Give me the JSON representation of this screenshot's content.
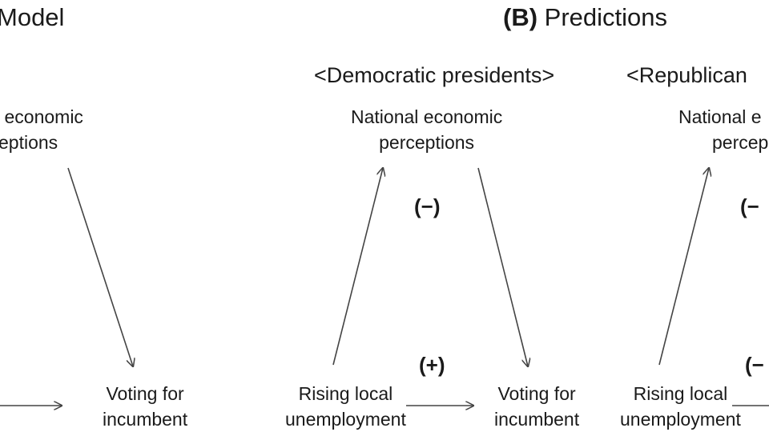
{
  "panel_a": {
    "title": "Model",
    "nodes": {
      "national_line1": "l economic",
      "national_line2": "eptions",
      "voting_line1": "Voting for",
      "voting_line2": "incumbent"
    }
  },
  "panel_b": {
    "title_label": "(B)",
    "title_text": "Predictions",
    "democratic": {
      "header": "<Democratic presidents>",
      "national_line1": "National economic",
      "national_line2": "perceptions",
      "sign_to_voting": "(−)",
      "sign_direct": "(+)",
      "unemployment_line1": "Rising local",
      "unemployment_line2": "unemployment",
      "voting_line1": "Voting for",
      "voting_line2": "incumbent"
    },
    "republican": {
      "header": "<Republican",
      "national_line1": "National e",
      "national_line2": "percep",
      "sign_to_voting": "(−",
      "sign_direct": "(−",
      "unemployment_line1": "Rising local",
      "unemployment_line2": "unemployment"
    }
  }
}
